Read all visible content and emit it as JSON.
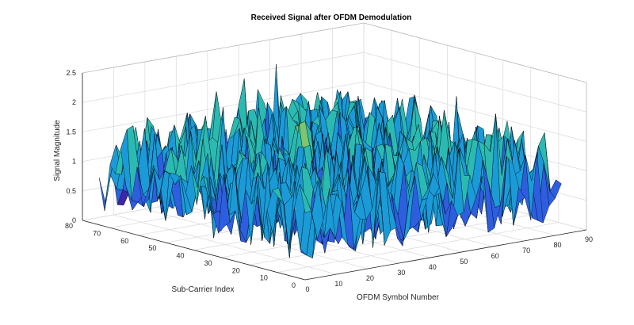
{
  "chart_data": {
    "type": "surface",
    "title": "Received Signal after OFDM Demodulation",
    "xlabel": "OFDM Symbol Number",
    "ylabel": "Sub-Carrier Index",
    "zlabel": "Signal Magnitude",
    "x_ticks": [
      "0",
      "10",
      "20",
      "30",
      "40",
      "50",
      "60",
      "70",
      "80",
      "90"
    ],
    "y_ticks": [
      "0",
      "10",
      "20",
      "30",
      "40",
      "50",
      "60",
      "70",
      "80"
    ],
    "z_ticks": [
      "0",
      "0.5",
      "1",
      "1.5",
      "2",
      "2.5"
    ],
    "xlim": [
      0,
      90
    ],
    "ylim": [
      0,
      80
    ],
    "zlim": [
      0,
      2.5
    ],
    "x_extent": [
      0,
      82
    ],
    "y_extent": [
      0,
      74
    ],
    "z_range_observed": [
      0,
      2.4
    ],
    "grid": true,
    "colormap": [
      "#3e26a8",
      "#2e5ee0",
      "#1a9bd8",
      "#2bbab2",
      "#7bc66e",
      "#d8c03a"
    ],
    "edge_color": "#000000"
  }
}
